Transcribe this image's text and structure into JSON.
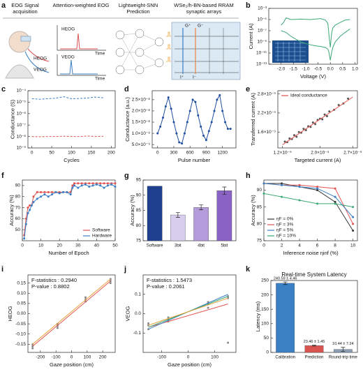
{
  "diagram": {
    "panel_label": "a",
    "steps": [
      "EOG Signal acquisition",
      "Attention-weighted EOG",
      "Lightweight-SNN Prediction",
      "WSe₂/h-BN-based RRAM synaptic arrays"
    ],
    "signal_labels": [
      "HEOG",
      "VEOG"
    ],
    "time_label": "Time",
    "array_labels": [
      "G⁺",
      "G⁻",
      "I⁺",
      "I⁻"
    ]
  },
  "chart_data": [
    {
      "type": "line",
      "panel_label": "b",
      "xlabel": "Voltage (V)",
      "ylabel": "Current (A)",
      "ylog": true,
      "xlim": [
        -2.5,
        1.1
      ],
      "xticks": [
        {
          "value": -2,
          "label": "-2.0"
        },
        -1.5,
        {
          "value": -1,
          "label": "-1.0"
        },
        -0.5,
        {
          "value": 0,
          "label": "0.0"
        },
        0.5,
        {
          "value": 1,
          "label": "1.0"
        }
      ],
      "ylim": [
        1e-13,
        0.001
      ],
      "yticks": [
        {
          "value": 1e-13,
          "label": "10⁻¹³"
        },
        {
          "value": 1e-11,
          "label": "10⁻¹¹"
        },
        {
          "value": 1e-09,
          "label": "10⁻⁹"
        },
        {
          "value": 1e-07,
          "label": "10⁻⁷"
        },
        {
          "value": 1e-05,
          "label": "10⁻⁵"
        },
        {
          "value": 0.001,
          "label": "10⁻³"
        }
      ],
      "series": [
        {
          "color": "#3aa876",
          "style": "line",
          "x": [
            -2.0,
            -1.9,
            -1.8,
            -1.6,
            -1.2,
            -0.8,
            -0.4,
            -0.2,
            -0.1,
            -0.05,
            0,
            0.05,
            0.1,
            0.2,
            0.4,
            0.6,
            0.8
          ],
          "values": [
            1e-06,
            3e-06,
            2e-05,
            1e-05,
            1.2e-05,
            1e-05,
            1.5e-05,
            8e-06,
            2e-06,
            1e-08,
            1e-10,
            3e-08,
            3e-07,
            1e-06,
            3e-06,
            8e-06,
            1e-05
          ]
        },
        {
          "color": "#3aa876",
          "style": "line",
          "x": [
            -2.0,
            -1.8,
            -1.6,
            -1.4,
            -1.2,
            -1.0,
            -0.8,
            -0.6,
            -0.4,
            -0.2,
            -0.1,
            -0.05,
            0,
            0.05,
            0.1,
            0.2,
            0.4,
            0.6,
            0.8
          ],
          "values": [
            1e-07,
            5e-08,
            1e-08,
            3e-09,
            1e-09,
            5e-10,
            3e-10,
            2e-10,
            1.5e-10,
            1e-10,
            5e-11,
            1e-11,
            5e-13,
            1e-11,
            1e-10,
            1e-09,
            1e-08,
            5e-08,
            2e-07
          ]
        }
      ]
    },
    {
      "type": "line",
      "panel_label": "c",
      "xlabel": "Cycles",
      "ylabel": "Conductance (S)",
      "ylog": true,
      "xlim": [
        -10,
        210
      ],
      "xticks": [
        0,
        50,
        100,
        150,
        200
      ],
      "ylim": [
        1e-09,
        0.0001
      ],
      "yticks": [
        {
          "value": 1e-09,
          "label": "10⁻⁹"
        },
        {
          "value": 1e-08,
          "label": "10⁻⁸"
        },
        {
          "value": 1e-07,
          "label": "10⁻⁷"
        },
        {
          "value": 1e-06,
          "label": "10⁻⁶"
        },
        {
          "value": 1e-05,
          "label": "10⁻⁵"
        },
        {
          "value": 0.0001,
          "label": "10⁻⁴"
        }
      ],
      "series": [
        {
          "color": "#3b7fc4",
          "style": "line",
          "dash": true,
          "x": [
            0,
            20,
            40,
            60,
            80,
            100,
            120,
            140,
            160,
            180
          ],
          "values": [
            2e-05,
            1.8e-05,
            2e-05,
            2.2e-05,
            3e-05,
            2e-05,
            2.1e-05,
            2.3e-05,
            2.8e-05,
            2.4e-05
          ]
        },
        {
          "color": "#d9534f",
          "style": "line",
          "dash": true,
          "x": [
            0,
            20,
            40,
            60,
            80,
            100,
            120,
            140,
            160,
            180
          ],
          "values": [
            1e-08,
            9.5e-09,
            1e-08,
            1e-08,
            1.05e-08,
            1e-08,
            1e-08,
            1.1e-08,
            1e-08,
            1.05e-08
          ]
        }
      ]
    },
    {
      "type": "line",
      "panel_label": "d",
      "xlabel": "Pulse number",
      "ylabel": "Conductance (a.u.)",
      "xlim": [
        -100,
        1450
      ],
      "xticks": [
        0,
        300,
        600,
        900,
        1200
      ],
      "ylim": [
        3.5e-09,
        2.9e-08
      ],
      "yticks": [
        {
          "value": 5e-09,
          "label": "5.0×10⁻⁹"
        },
        {
          "value": 1e-08,
          "label": "1.0×10⁻⁸"
        },
        {
          "value": 1.5e-08,
          "label": "1.5×10⁻⁸"
        },
        {
          "value": 2e-08,
          "label": "2.0×10⁻⁸"
        },
        {
          "value": 2.5e-08,
          "label": "2.5×10⁻⁸"
        }
      ],
      "series": [
        {
          "color": "#1f4e9e",
          "style": "lines+markers",
          "x": [
            0,
            50,
            100,
            150,
            200,
            250,
            300,
            350,
            400,
            450,
            500,
            550,
            600,
            650,
            700,
            750,
            800,
            850,
            900,
            950,
            1000,
            1050,
            1100,
            1150,
            1200,
            1250,
            1300,
            1350
          ],
          "values": [
            1e-08,
            1.3e-08,
            1.7e-08,
            2.2e-08,
            2.6e-08,
            2.1e-08,
            1.5e-08,
            1e-08,
            6e-09,
            5.5e-09,
            1e-08,
            1.5e-08,
            2e-08,
            2.5e-08,
            2.4e-08,
            1.8e-08,
            1.3e-08,
            9e-09,
            7e-09,
            1.1e-08,
            1.5e-08,
            2e-08,
            2.5e-08,
            2.7e-08,
            2e-08,
            1.5e-08,
            1.2e-08,
            1.2e-08
          ]
        }
      ]
    },
    {
      "type": "scatter",
      "panel_label": "e",
      "xlabel": "Targeted current (A)",
      "ylabel": "Transferred current (A)",
      "legend": "upper left",
      "xlim": [
        1.1e-09,
        2.8e-09
      ],
      "xticks": [
        {
          "value": 1.2e-09,
          "label": "1.2×10⁻⁹"
        },
        {
          "value": 2e-09,
          "label": "2.0×10⁻⁹"
        },
        {
          "value": 2.7e-09,
          "label": "2.7×10⁻⁹"
        }
      ],
      "ylim": [
        1.1e-09,
        2.9e-09
      ],
      "yticks": [
        {
          "value": 1.6e-09,
          "label": "1.6×10⁻⁹"
        },
        {
          "value": 2.2e-09,
          "label": "2.2×10⁻⁹"
        },
        {
          "value": 2.8e-09,
          "label": "2.8×10⁻⁹"
        }
      ],
      "series": [
        {
          "color": "#555555",
          "style": "markers",
          "x": [
            1.25e-09,
            1.3e-09,
            1.35e-09,
            1.4e-09,
            1.45e-09,
            1.5e-09,
            1.55e-09,
            1.6e-09,
            1.65e-09,
            1.7e-09,
            1.75e-09,
            1.8e-09,
            1.85e-09,
            1.9e-09,
            1.95e-09,
            2e-09,
            2.05e-09,
            2.1e-09,
            2.15e-09,
            2.2e-09,
            2.3e-09,
            2.4e-09,
            2.5e-09,
            2.6e-09
          ],
          "values": [
            1.3e-09,
            1.28e-09,
            1.4e-09,
            1.38e-09,
            1.5e-09,
            1.45e-09,
            1.6e-09,
            1.58e-09,
            1.7e-09,
            1.66e-09,
            1.78e-09,
            1.76e-09,
            1.9e-09,
            1.85e-09,
            1.98e-09,
            2.02e-09,
            2e-09,
            2.15e-09,
            2.1e-09,
            2.25e-09,
            2.3e-09,
            2.45e-09,
            2.5e-09,
            2.65e-09
          ]
        },
        {
          "name": "Ideal conductance",
          "color": "#e0524f",
          "style": "line",
          "x": [
            1.2e-09,
            2.7e-09
          ],
          "values": [
            1.2e-09,
            2.7e-09
          ]
        }
      ]
    },
    {
      "type": "line",
      "panel_label": "f",
      "xlabel": "Number of Epoch",
      "ylabel": "Accuracy (%)",
      "legend": "lower right",
      "xlim": [
        0,
        50
      ],
      "xticks": [
        0,
        10,
        20,
        30,
        40,
        50
      ],
      "ylim": [
        40,
        95
      ],
      "yticks": [
        50,
        60,
        70,
        80,
        90
      ],
      "series": [
        {
          "name": "Software",
          "color": "#e0524f",
          "style": "lines+markers",
          "x": [
            1,
            2,
            3,
            4,
            5,
            6,
            8,
            10,
            12,
            14,
            16,
            18,
            20,
            22,
            24,
            26,
            27,
            28,
            30,
            32,
            34,
            36,
            38,
            40,
            42,
            44,
            46,
            48,
            50
          ],
          "values": [
            45,
            60,
            70,
            72,
            72,
            80,
            84,
            84,
            84,
            84,
            84,
            84,
            84,
            84,
            84,
            84,
            90,
            92,
            92,
            92,
            92,
            92,
            92,
            92,
            92,
            92,
            92,
            92,
            92
          ]
        },
        {
          "name": "Hardware",
          "color": "#3b7fc4",
          "style": "lines+markers",
          "x": [
            1,
            2,
            3,
            4,
            5,
            6,
            8,
            10,
            12,
            14,
            16,
            18,
            20,
            22,
            24,
            26,
            27,
            28,
            30,
            32,
            34,
            36,
            38,
            40,
            42,
            44,
            46,
            48,
            50
          ],
          "values": [
            42,
            55,
            65,
            68,
            72,
            75,
            78,
            80,
            82,
            80,
            82,
            84,
            83,
            84,
            84,
            82,
            88,
            90,
            88,
            90,
            91,
            89,
            90,
            91,
            90,
            88,
            90,
            91,
            89
          ]
        }
      ]
    },
    {
      "type": "bar",
      "panel_label": "g",
      "ylabel": "Accuracy (%)",
      "categories": [
        "Software",
        "3bit",
        "4bit",
        "5bit"
      ],
      "values": [
        93,
        83.5,
        86,
        91.5
      ],
      "errors": [
        null,
        0.8,
        0.8,
        1.2
      ],
      "colors": [
        "#1f3f8f",
        "#d9cdee",
        "#b49bd9",
        "#8a62c4"
      ],
      "ylim": [
        75,
        95
      ],
      "yticks": [
        75,
        80,
        85,
        90,
        95
      ]
    },
    {
      "type": "line",
      "panel_label": "h",
      "xlabel": "Inference noise ηinf (%)",
      "ylabel": "Accuracy (%)",
      "legend": "lower left",
      "xlim": [
        0,
        10.5
      ],
      "xticks": [
        0,
        2,
        4,
        6,
        8,
        10
      ],
      "ylim": [
        75,
        93
      ],
      "yticks": [
        75,
        80,
        85,
        90
      ],
      "series": [
        {
          "name": "ηF = 0%",
          "color": "#333333",
          "style": "lines+markers",
          "x": [
            0,
            2,
            4,
            6,
            8,
            10
          ],
          "values": [
            92,
            92,
            91,
            90,
            86.5,
            78
          ]
        },
        {
          "name": "ηF = 3%",
          "color": "#e0524f",
          "style": "lines+markers",
          "x": [
            0,
            2,
            4,
            6,
            8,
            10
          ],
          "values": [
            92,
            91.5,
            91.5,
            91,
            90.5,
            80
          ]
        },
        {
          "name": "ηF = 5%",
          "color": "#3b7fc4",
          "style": "lines+markers",
          "x": [
            0,
            2,
            4,
            6,
            8,
            10
          ],
          "values": [
            92,
            91.5,
            91,
            90.5,
            88,
            82
          ]
        },
        {
          "name": "ηF = 10%",
          "color": "#3aa876",
          "style": "lines+markers",
          "x": [
            0,
            2,
            4,
            6,
            8,
            10
          ],
          "values": [
            89,
            88,
            87,
            86,
            86,
            85
          ]
        }
      ]
    },
    {
      "type": "scatter",
      "panel_label": "i",
      "xlabel": "Gaze position (cm)",
      "ylabel": "HEOG",
      "annotations": [
        "F-statistics : 0.2940",
        "P-value : 0.8802"
      ],
      "xlim": [
        -280,
        280
      ],
      "xticks": [
        -200,
        -100,
        0,
        100,
        200
      ],
      "ylim": [
        -0.19,
        0.19
      ],
      "yticks": [
        -0.15,
        {
          "value": -0.1,
          "label": "-0.10"
        },
        -0.05,
        {
          "value": 0,
          "label": "0.00"
        },
        0.05,
        {
          "value": 0.1,
          "label": "0.10"
        },
        0.15
      ],
      "series": [
        {
          "color": "#888888",
          "style": "markers",
          "x": [
            -250,
            -250,
            -250,
            -90,
            -90,
            -90,
            90,
            90,
            90,
            250,
            250,
            250
          ],
          "values": [
            -0.16,
            -0.15,
            -0.17,
            -0.06,
            -0.07,
            -0.05,
            0.07,
            0.06,
            0.08,
            0.16,
            0.15,
            0.17
          ]
        },
        {
          "color": "#e8a23a",
          "style": "line",
          "x": [
            -250,
            250
          ],
          "values": [
            -0.15,
            0.17
          ]
        },
        {
          "color": "#e0524f",
          "style": "line",
          "x": [
            -250,
            250
          ],
          "values": [
            -0.16,
            0.16
          ]
        }
      ]
    },
    {
      "type": "scatter",
      "panel_label": "j",
      "xlabel": "Gaze position (cm)",
      "ylabel": "VEOG",
      "annotations": [
        "F-statistics : 1.5473",
        "P-value : 0.2061"
      ],
      "xlim": [
        -170,
        180
      ],
      "xticks": [
        -100,
        0,
        100
      ],
      "ylim": [
        -0.2,
        0.2
      ],
      "yticks": [
        -0.1,
        {
          "value": 0,
          "label": "0.0"
        },
        0.1
      ],
      "series": [
        {
          "color": "#888888",
          "style": "markers",
          "x": [
            -150,
            -150,
            -150,
            -75,
            -75,
            -75,
            75,
            75,
            75,
            150,
            150,
            150
          ],
          "values": [
            -0.06,
            -0.05,
            -0.08,
            -0.03,
            -0.02,
            -0.04,
            0.05,
            0.06,
            0.03,
            0.09,
            0.08,
            -0.15
          ]
        },
        {
          "color": "#e0524f",
          "style": "line",
          "x": [
            -150,
            150
          ],
          "values": [
            -0.07,
            0.05
          ]
        },
        {
          "color": "#3b7fc4",
          "style": "line",
          "x": [
            -150,
            150
          ],
          "values": [
            -0.08,
            0.1
          ]
        },
        {
          "color": "#3aa876",
          "style": "line",
          "x": [
            -150,
            150
          ],
          "values": [
            -0.07,
            0.09
          ]
        },
        {
          "color": "#e8a23a",
          "style": "line",
          "x": [
            -150,
            150
          ],
          "values": [
            -0.06,
            0.08
          ]
        }
      ]
    },
    {
      "type": "bar",
      "panel_label": "k",
      "title": "Real-time System Latency",
      "ylabel": "Latency (ms)",
      "categories": [
        "Calibration",
        "Prediction",
        "Round-trip time"
      ],
      "values": [
        240.59,
        23.46,
        10.44
      ],
      "errors": [
        4.46,
        1.45,
        7.24
      ],
      "value_labels": [
        "240.59 ± 4.46",
        "23.46 ± 1.45",
        "10.44 ± 7.24"
      ],
      "colors": [
        "#3b7fc4",
        "#d9534f",
        "#8a9fb5"
      ],
      "ylim": [
        0,
        250
      ],
      "yticks": [
        0,
        50,
        100,
        150,
        200,
        250
      ]
    }
  ]
}
